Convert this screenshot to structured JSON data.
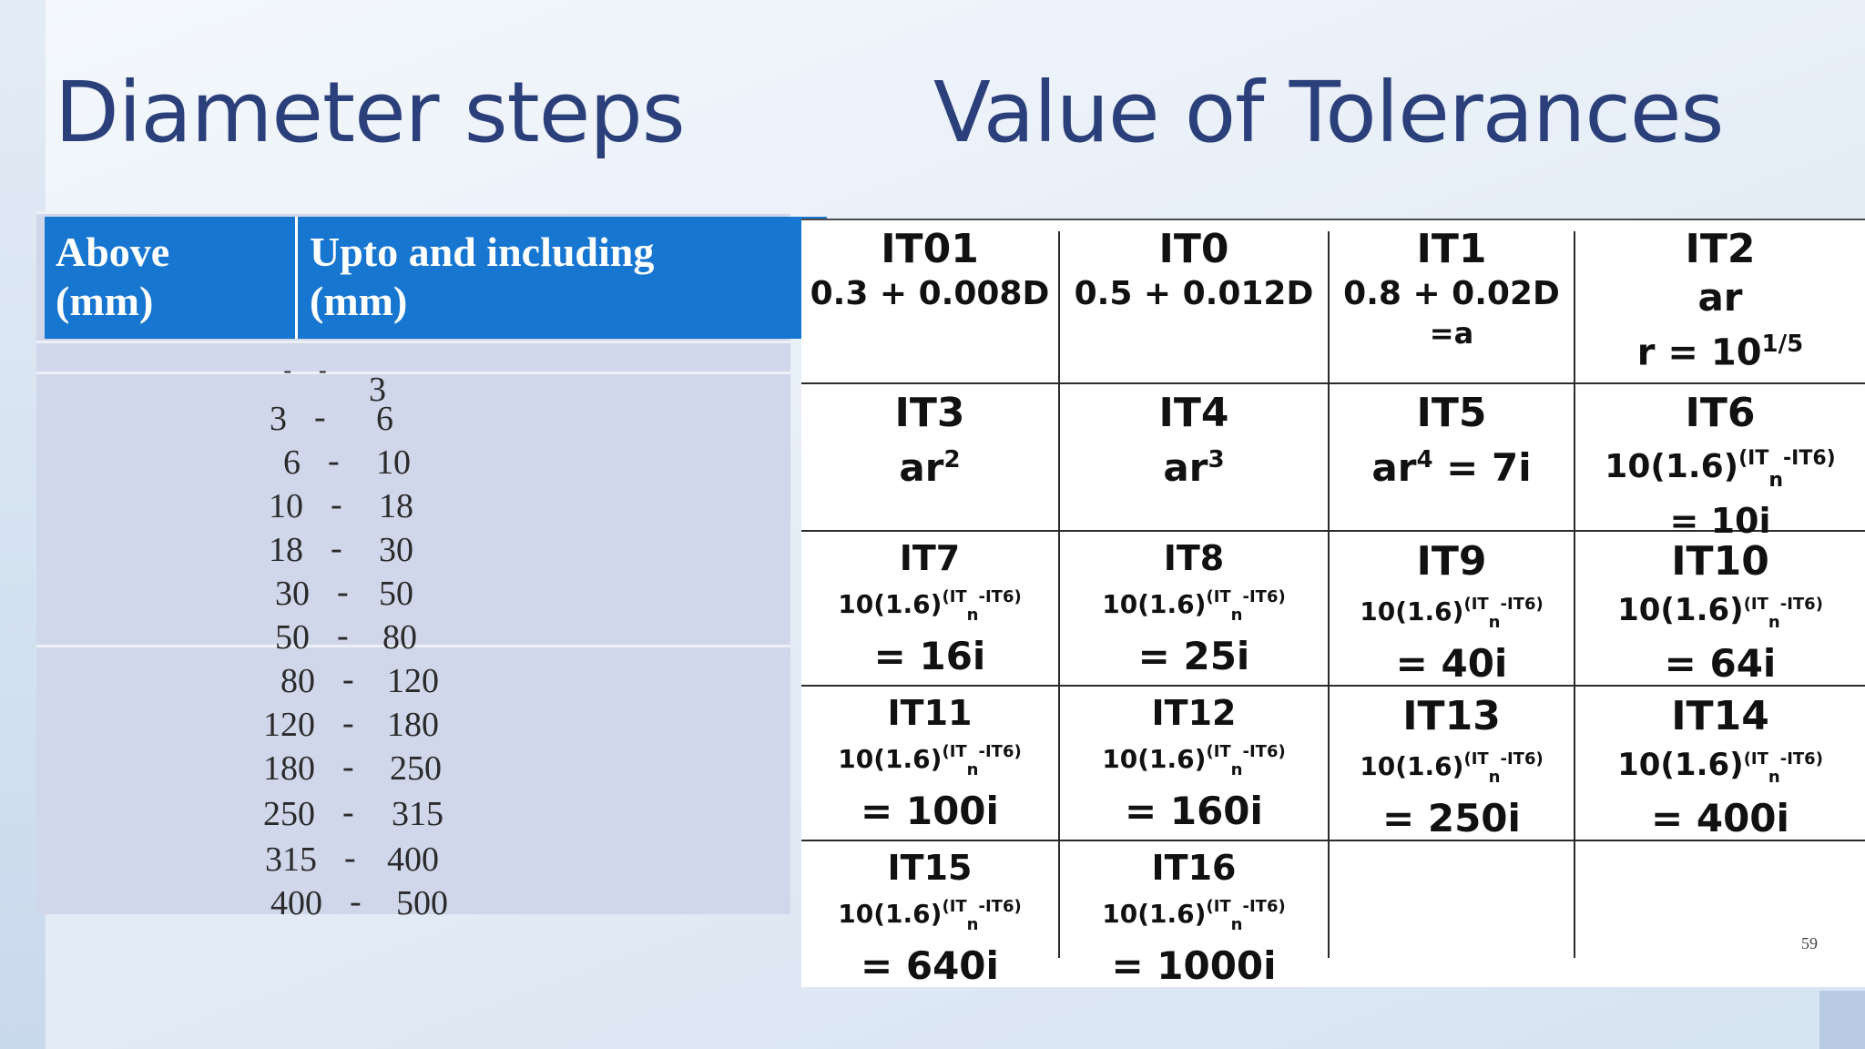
{
  "titles": {
    "left": "Diameter steps",
    "right": "Value of Tolerances"
  },
  "diameter_table": {
    "headers": [
      [
        "Above",
        "(mm)"
      ],
      [
        "Upto and including",
        "(mm)"
      ]
    ],
    "rows": [
      {
        "above": "-",
        "dash": "-",
        "upto": "3"
      },
      {
        "above": "3",
        "dash": "-",
        "upto": "6"
      },
      {
        "above": "6",
        "dash": "-",
        "upto": "10"
      },
      {
        "above": "10",
        "dash": "-",
        "upto": "18"
      },
      {
        "above": "18",
        "dash": "-",
        "upto": "30"
      },
      {
        "above": "30",
        "dash": "-",
        "upto": "50"
      },
      {
        "above": "50",
        "dash": "-",
        "upto": "80"
      },
      {
        "above": "80",
        "dash": "-",
        "upto": "120"
      },
      {
        "above": "120",
        "dash": "-",
        "upto": "180"
      },
      {
        "above": "180",
        "dash": "-",
        "upto": "250"
      },
      {
        "above": "250",
        "dash": "-",
        "upto": "315"
      },
      {
        "above": "315",
        "dash": "-",
        "upto": "400"
      },
      {
        "above": "400",
        "dash": "-",
        "upto": "500"
      }
    ]
  },
  "tolerance_grades": {
    "formula_base": "10(1.6)",
    "formula_sup_a": "(IT",
    "formula_sub": "n",
    "formula_sup_b": "-IT6)",
    "row1": [
      {
        "name": "IT01",
        "line1": "0.3 + 0.008D",
        "line2": ""
      },
      {
        "name": "IT0",
        "line1": "0.5 + 0.012D",
        "line2": ""
      },
      {
        "name": "IT1",
        "line1": "0.8 + 0.02D",
        "line2": "=a"
      },
      {
        "name": "IT2",
        "line1": "ar",
        "line2": "r = 10",
        "line2_sup": "1/5"
      }
    ],
    "row2": [
      {
        "name": "IT3",
        "base": "ar",
        "sup": "2",
        "rest": ""
      },
      {
        "name": "IT4",
        "base": "ar",
        "sup": "3",
        "rest": ""
      },
      {
        "name": "IT5",
        "base": "ar",
        "sup": "4",
        "rest": " = 7i"
      }
    ],
    "formula_cells": [
      {
        "name": "IT6",
        "value": "= 10i"
      },
      {
        "name": "IT7",
        "value": "= 16i"
      },
      {
        "name": "IT8",
        "value": "= 25i"
      },
      {
        "name": "IT9",
        "value": "= 40i"
      },
      {
        "name": "IT10",
        "value": "= 64i"
      },
      {
        "name": "IT11",
        "value": "= 100i"
      },
      {
        "name": "IT12",
        "value": "= 160i"
      },
      {
        "name": "IT13",
        "value": "= 250i"
      },
      {
        "name": "IT14",
        "value": "= 400i"
      },
      {
        "name": "IT15",
        "value": "= 640i"
      },
      {
        "name": "IT16",
        "value": "= 1000i"
      }
    ]
  },
  "page_number": "59"
}
